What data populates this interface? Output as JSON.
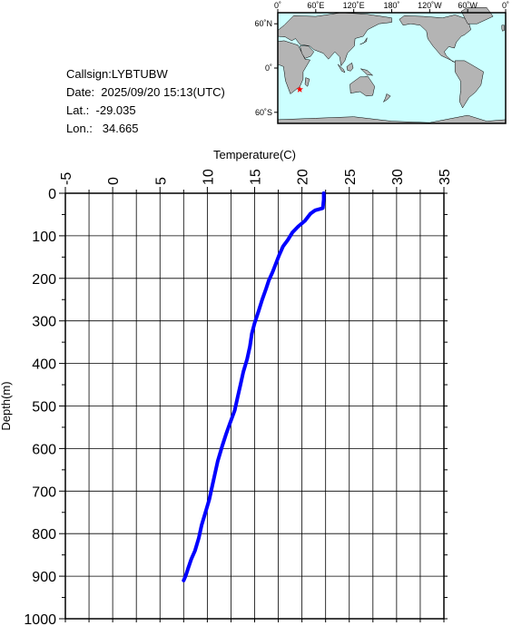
{
  "info": {
    "callsign": "Callsign:LYBTUBW",
    "date": "Date:  2025/09/20 15:13(UTC)",
    "lat": "Lat.:  -29.035",
    "lon": "Lon.:   34.665"
  },
  "map": {
    "lon_labels": [
      "0˚",
      "60˚E",
      "120˚E",
      "180˚",
      "120˚W",
      "60˚W",
      "0˚"
    ],
    "lat_labels": [
      "60˚N",
      "0˚",
      "60˚S"
    ],
    "ocean_color": "#ccffff",
    "land_color": "#b4b4b4",
    "marker_color": "#ff0000",
    "marker": {
      "lon": 34.665,
      "lat": -29.035
    }
  },
  "chart_data": {
    "type": "line",
    "xlabel": "Temperature(C)",
    "ylabel": "Depth(m)",
    "xlim": [
      -5,
      35
    ],
    "ylim": [
      0,
      1000
    ],
    "y_inverted": true,
    "x_axis_position": "top",
    "grid": true,
    "x_ticks": [
      "-5",
      "0",
      "5",
      "10",
      "15",
      "20",
      "25",
      "30",
      "35"
    ],
    "y_ticks": [
      "0",
      "100",
      "200",
      "300",
      "400",
      "500",
      "600",
      "700",
      "800",
      "900",
      "1000"
    ],
    "series": [
      {
        "color": "#0000ff",
        "points": [
          [
            22.3,
            0
          ],
          [
            22.3,
            15
          ],
          [
            22.2,
            35
          ],
          [
            21.4,
            40
          ],
          [
            20.9,
            48
          ],
          [
            20.3,
            65
          ],
          [
            19.6,
            78
          ],
          [
            19.0,
            92
          ],
          [
            18.5,
            110
          ],
          [
            18.0,
            125
          ],
          [
            17.6,
            145
          ],
          [
            17.2,
            168
          ],
          [
            16.9,
            185
          ],
          [
            16.5,
            205
          ],
          [
            16.2,
            225
          ],
          [
            15.8,
            250
          ],
          [
            15.4,
            278
          ],
          [
            15.0,
            305
          ],
          [
            14.7,
            330
          ],
          [
            14.5,
            360
          ],
          [
            14.2,
            390
          ],
          [
            13.8,
            420
          ],
          [
            13.5,
            450
          ],
          [
            13.2,
            480
          ],
          [
            12.9,
            510
          ],
          [
            12.4,
            540
          ],
          [
            12.0,
            565
          ],
          [
            11.6,
            592
          ],
          [
            11.1,
            630
          ],
          [
            10.8,
            660
          ],
          [
            10.5,
            690
          ],
          [
            10.2,
            720
          ],
          [
            9.8,
            750
          ],
          [
            9.4,
            780
          ],
          [
            9.1,
            810
          ],
          [
            8.7,
            840
          ],
          [
            8.3,
            860
          ],
          [
            8.0,
            880
          ],
          [
            7.7,
            900
          ],
          [
            7.5,
            910
          ]
        ]
      }
    ]
  }
}
